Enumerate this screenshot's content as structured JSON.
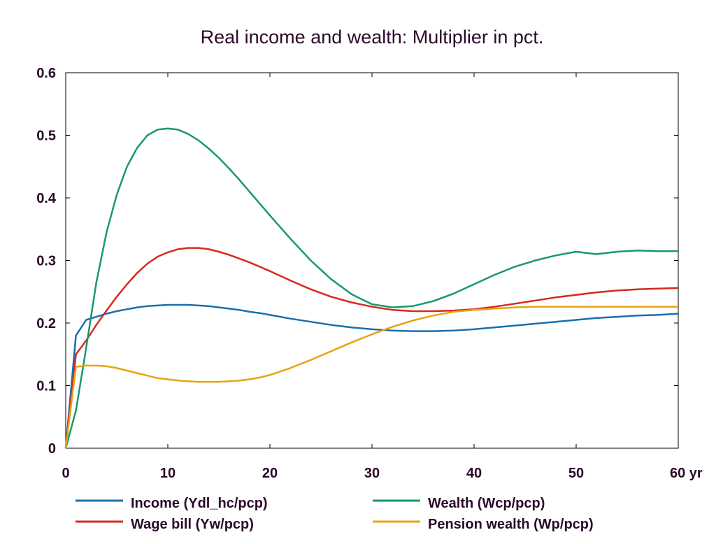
{
  "chart_data": {
    "type": "line",
    "title": "Real income and wealth: Multiplier in pct.",
    "xlabel": "",
    "ylabel": "",
    "x_unit_label": "yr",
    "xlim": [
      0,
      60
    ],
    "ylim": [
      0,
      0.6
    ],
    "x_ticks": [
      0,
      10,
      20,
      30,
      40,
      50,
      60
    ],
    "x_tick_labels": [
      "0",
      "10",
      "20",
      "30",
      "40",
      "50",
      "60 yr"
    ],
    "y_ticks": [
      0,
      0.1,
      0.2,
      0.3,
      0.4,
      0.5,
      0.6
    ],
    "y_tick_labels": [
      "0",
      "0.1",
      "0.2",
      "0.3",
      "0.4",
      "0.5",
      "0.6"
    ],
    "grid": false,
    "legend_position": "bottom",
    "x": [
      0,
      1,
      2,
      3,
      4,
      5,
      6,
      7,
      8,
      9,
      10,
      11,
      12,
      13,
      14,
      15,
      16,
      17,
      18,
      19,
      20,
      22,
      24,
      26,
      28,
      30,
      32,
      34,
      36,
      38,
      40,
      42,
      44,
      46,
      48,
      50,
      52,
      54,
      56,
      58,
      60
    ],
    "series": [
      {
        "name": "Income (Ydl_hc/pcp)",
        "color": "#1a6fb0",
        "values": [
          0,
          0.18,
          0.205,
          0.21,
          0.215,
          0.219,
          0.222,
          0.225,
          0.227,
          0.228,
          0.229,
          0.229,
          0.229,
          0.228,
          0.227,
          0.225,
          0.223,
          0.221,
          0.218,
          0.216,
          0.213,
          0.207,
          0.202,
          0.197,
          0.193,
          0.19,
          0.188,
          0.187,
          0.187,
          0.188,
          0.19,
          0.193,
          0.196,
          0.199,
          0.202,
          0.205,
          0.208,
          0.21,
          0.212,
          0.213,
          0.215
        ]
      },
      {
        "name": "Wage bill (Yw/pcp)",
        "color": "#d62a20",
        "values": [
          0,
          0.15,
          0.172,
          0.197,
          0.22,
          0.242,
          0.262,
          0.28,
          0.295,
          0.306,
          0.313,
          0.318,
          0.32,
          0.32,
          0.318,
          0.314,
          0.309,
          0.303,
          0.297,
          0.29,
          0.283,
          0.268,
          0.254,
          0.242,
          0.233,
          0.226,
          0.221,
          0.219,
          0.219,
          0.22,
          0.222,
          0.226,
          0.231,
          0.236,
          0.241,
          0.245,
          0.249,
          0.252,
          0.254,
          0.255,
          0.256
        ]
      },
      {
        "name": "Wealth (Wcp/pcp)",
        "color": "#18996c",
        "values": [
          0,
          0.06,
          0.16,
          0.265,
          0.345,
          0.405,
          0.45,
          0.48,
          0.5,
          0.509,
          0.511,
          0.509,
          0.502,
          0.492,
          0.479,
          0.464,
          0.447,
          0.429,
          0.41,
          0.391,
          0.372,
          0.335,
          0.3,
          0.27,
          0.246,
          0.23,
          0.225,
          0.227,
          0.235,
          0.247,
          0.262,
          0.277,
          0.29,
          0.3,
          0.308,
          0.314,
          0.31,
          0.314,
          0.316,
          0.315,
          0.315
        ]
      },
      {
        "name": "Pension wealth (Wp/pcp)",
        "color": "#e6a412",
        "values": [
          0,
          0.13,
          0.132,
          0.132,
          0.131,
          0.128,
          0.124,
          0.12,
          0.116,
          0.112,
          0.11,
          0.108,
          0.107,
          0.106,
          0.106,
          0.106,
          0.107,
          0.108,
          0.11,
          0.113,
          0.117,
          0.128,
          0.141,
          0.155,
          0.169,
          0.182,
          0.194,
          0.204,
          0.212,
          0.218,
          0.221,
          0.223,
          0.225,
          0.226,
          0.226,
          0.226,
          0.226,
          0.226,
          0.226,
          0.226,
          0.226
        ]
      }
    ]
  }
}
